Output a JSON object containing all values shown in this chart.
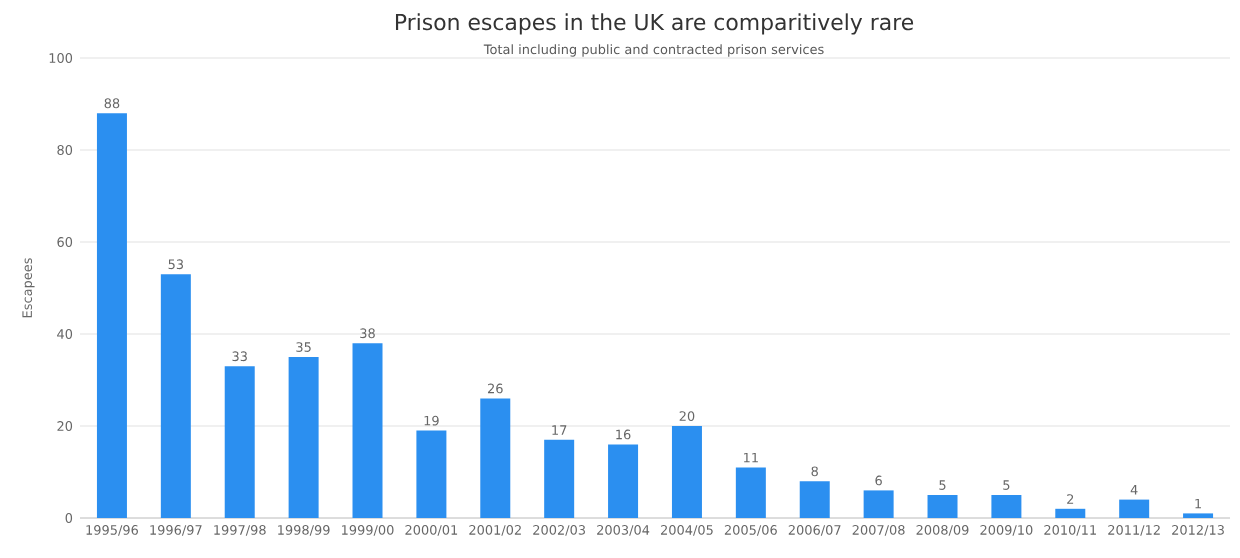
{
  "chart_data": {
    "type": "bar",
    "title": "Prison escapes in the UK are comparitively rare",
    "subtitle": "Total including public and contracted prison services",
    "ylabel": "Escapees",
    "categories": [
      "1995/96",
      "1996/97",
      "1997/98",
      "1998/99",
      "1999/00",
      "2000/01",
      "2001/02",
      "2002/03",
      "2003/04",
      "2004/05",
      "2005/06",
      "2006/07",
      "2007/08",
      "2008/09",
      "2009/10",
      "2010/11",
      "2011/12",
      "2012/13"
    ],
    "values": [
      88,
      53,
      33,
      35,
      38,
      19,
      26,
      17,
      16,
      20,
      11,
      8,
      6,
      5,
      5,
      2,
      4,
      1
    ],
    "color": "#2b8ff0",
    "ylim": [
      0,
      100
    ],
    "yticks": [
      0,
      20,
      40,
      60,
      80,
      100
    ],
    "grid": "y",
    "data_labels": true
  }
}
